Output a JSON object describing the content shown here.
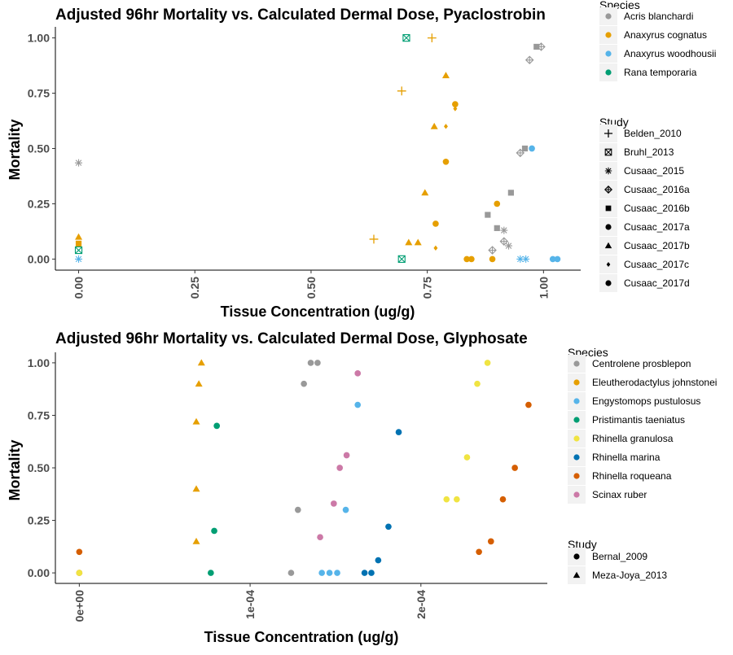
{
  "colors": {
    "gray": "#999999",
    "orange": "#E69F00",
    "skyblue": "#56B4E9",
    "green": "#009E73",
    "yellow": "#F0E442",
    "blue": "#0072B2",
    "vermillion": "#D55E00",
    "pink": "#CC79A7"
  },
  "chart_data": [
    {
      "type": "scatter",
      "title": "Adjusted 96hr Mortality vs. Calculated Dermal Dose, Pyaclostrobin",
      "xlabel": "Tissue Concentration (ug/g)",
      "ylabel": "Mortality",
      "xlim": [
        -0.05,
        1.08
      ],
      "ylim": [
        -0.05,
        1.05
      ],
      "xticks": [
        0,
        0.25,
        0.5,
        0.75,
        1.0
      ],
      "xtick_labels": [
        "0.00",
        "0.25",
        "0.50",
        "0.75",
        "1.00"
      ],
      "yticks": [
        0,
        0.25,
        0.5,
        0.75,
        1.0
      ],
      "ytick_labels": [
        "0.00",
        "0.25",
        "0.50",
        "0.75",
        "1.00"
      ],
      "x_tick_rotation": -90,
      "grid": false,
      "legend_position": "right",
      "legend_species_title": "Species",
      "legend_study_title": "Study",
      "species": [
        {
          "name": "Acris blanchardi",
          "color": "#999999"
        },
        {
          "name": "Anaxyrus cognatus",
          "color": "#E69F00"
        },
        {
          "name": "Anaxyrus woodhousii",
          "color": "#56B4E9"
        },
        {
          "name": "Rana temporaria",
          "color": "#009E73"
        }
      ],
      "studies": [
        {
          "name": "Belden_2010",
          "shape": "plus"
        },
        {
          "name": "Bruhl_2013",
          "shape": "boxx"
        },
        {
          "name": "Cusaac_2015",
          "shape": "asterisk"
        },
        {
          "name": "Cusaac_2016a",
          "shape": "diamondplus"
        },
        {
          "name": "Cusaac_2016b",
          "shape": "square"
        },
        {
          "name": "Cusaac_2017a",
          "shape": "circle"
        },
        {
          "name": "Cusaac_2017b",
          "shape": "triangle"
        },
        {
          "name": "Cusaac_2017c",
          "shape": "diamond"
        },
        {
          "name": "Cusaac_2017d",
          "shape": "circle"
        }
      ],
      "points": [
        {
          "x": 0.0,
          "y": 0.435,
          "species": "Acris blanchardi",
          "study": "Cusaac_2015"
        },
        {
          "x": 0.0,
          "y": 0.1,
          "species": "Anaxyrus cognatus",
          "study": "Cusaac_2017b"
        },
        {
          "x": 0.0,
          "y": 0.07,
          "species": "Anaxyrus cognatus",
          "study": "Cusaac_2016b"
        },
        {
          "x": 0.0,
          "y": 0.04,
          "species": "Rana temporaria",
          "study": "Bruhl_2013"
        },
        {
          "x": 0.0,
          "y": 0.0,
          "species": "Anaxyrus woodhousii",
          "study": "Cusaac_2015"
        },
        {
          "x": 0.635,
          "y": 0.09,
          "species": "Anaxyrus cognatus",
          "study": "Belden_2010"
        },
        {
          "x": 0.695,
          "y": 0.76,
          "species": "Anaxyrus cognatus",
          "study": "Belden_2010"
        },
        {
          "x": 0.76,
          "y": 1.0,
          "species": "Anaxyrus cognatus",
          "study": "Belden_2010"
        },
        {
          "x": 0.705,
          "y": 1.0,
          "species": "Rana temporaria",
          "study": "Bruhl_2013"
        },
        {
          "x": 0.695,
          "y": 0.0,
          "species": "Rana temporaria",
          "study": "Bruhl_2013"
        },
        {
          "x": 0.71,
          "y": 0.075,
          "species": "Anaxyrus cognatus",
          "study": "Cusaac_2017b"
        },
        {
          "x": 0.73,
          "y": 0.075,
          "species": "Anaxyrus cognatus",
          "study": "Cusaac_2017b"
        },
        {
          "x": 0.745,
          "y": 0.3,
          "species": "Anaxyrus cognatus",
          "study": "Cusaac_2017b"
        },
        {
          "x": 0.765,
          "y": 0.6,
          "species": "Anaxyrus cognatus",
          "study": "Cusaac_2017b"
        },
        {
          "x": 0.79,
          "y": 0.83,
          "species": "Anaxyrus cognatus",
          "study": "Cusaac_2017b"
        },
        {
          "x": 0.768,
          "y": 0.16,
          "species": "Anaxyrus cognatus",
          "study": "Cusaac_2017a"
        },
        {
          "x": 0.768,
          "y": 0.05,
          "species": "Anaxyrus cognatus",
          "study": "Cusaac_2017c"
        },
        {
          "x": 0.79,
          "y": 0.6,
          "species": "Anaxyrus cognatus",
          "study": "Cusaac_2017c"
        },
        {
          "x": 0.79,
          "y": 0.44,
          "species": "Anaxyrus cognatus",
          "study": "Cusaac_2017a"
        },
        {
          "x": 0.81,
          "y": 0.7,
          "species": "Anaxyrus cognatus",
          "study": "Cusaac_2017a"
        },
        {
          "x": 0.81,
          "y": 0.68,
          "species": "Anaxyrus cognatus",
          "study": "Cusaac_2017c"
        },
        {
          "x": 0.835,
          "y": 0.0,
          "species": "Anaxyrus cognatus",
          "study": "Cusaac_2017a"
        },
        {
          "x": 0.845,
          "y": 0.0,
          "species": "Anaxyrus cognatus",
          "study": "Cusaac_2017a"
        },
        {
          "x": 0.89,
          "y": 0.0,
          "species": "Anaxyrus cognatus",
          "study": "Cusaac_2017a"
        },
        {
          "x": 0.9,
          "y": 0.25,
          "species": "Anaxyrus cognatus",
          "study": "Cusaac_2017a"
        },
        {
          "x": 0.88,
          "y": 0.2,
          "species": "Acris blanchardi",
          "study": "Cusaac_2016b"
        },
        {
          "x": 0.9,
          "y": 0.14,
          "species": "Acris blanchardi",
          "study": "Cusaac_2016b"
        },
        {
          "x": 0.93,
          "y": 0.3,
          "species": "Acris blanchardi",
          "study": "Cusaac_2016b"
        },
        {
          "x": 0.96,
          "y": 0.5,
          "species": "Acris blanchardi",
          "study": "Cusaac_2016b"
        },
        {
          "x": 0.985,
          "y": 0.96,
          "species": "Acris blanchardi",
          "study": "Cusaac_2016b"
        },
        {
          "x": 0.89,
          "y": 0.04,
          "species": "Acris blanchardi",
          "study": "Cusaac_2016a"
        },
        {
          "x": 0.95,
          "y": 0.48,
          "species": "Acris blanchardi",
          "study": "Cusaac_2016a"
        },
        {
          "x": 0.97,
          "y": 0.9,
          "species": "Acris blanchardi",
          "study": "Cusaac_2016a"
        },
        {
          "x": 0.995,
          "y": 0.96,
          "species": "Acris blanchardi",
          "study": "Cusaac_2016a"
        },
        {
          "x": 0.915,
          "y": 0.08,
          "species": "Acris blanchardi",
          "study": "Cusaac_2016a"
        },
        {
          "x": 0.915,
          "y": 0.13,
          "species": "Acris blanchardi",
          "study": "Cusaac_2015"
        },
        {
          "x": 0.925,
          "y": 0.06,
          "species": "Acris blanchardi",
          "study": "Cusaac_2015"
        },
        {
          "x": 0.95,
          "y": 0.0,
          "species": "Anaxyrus woodhousii",
          "study": "Cusaac_2015"
        },
        {
          "x": 0.962,
          "y": 0.0,
          "species": "Anaxyrus woodhousii",
          "study": "Cusaac_2015"
        },
        {
          "x": 0.975,
          "y": 0.5,
          "species": "Anaxyrus woodhousii",
          "study": "Cusaac_2017a"
        },
        {
          "x": 1.02,
          "y": 0.0,
          "species": "Anaxyrus woodhousii",
          "study": "Cusaac_2017a"
        },
        {
          "x": 1.03,
          "y": 0.0,
          "species": "Anaxyrus woodhousii",
          "study": "Cusaac_2017a"
        }
      ]
    },
    {
      "type": "scatter",
      "title": "Adjusted 96hr Mortality vs. Calculated Dermal Dose, Glyphosate",
      "xlabel": "Tissue Concentration (ug/g)",
      "ylabel": "Mortality",
      "xlim": [
        -1.4e-05,
        0.000274
      ],
      "ylim": [
        -0.05,
        1.05
      ],
      "xticks": [
        0,
        0.0001,
        0.0002
      ],
      "xtick_labels": [
        "0e+00",
        "1e-04",
        "2e-04"
      ],
      "yticks": [
        0,
        0.25,
        0.5,
        0.75,
        1.0
      ],
      "ytick_labels": [
        "0.00",
        "0.25",
        "0.50",
        "0.75",
        "1.00"
      ],
      "x_tick_rotation": -90,
      "grid": false,
      "legend_position": "right",
      "legend_species_title": "Species",
      "legend_study_title": "Study",
      "species": [
        {
          "name": "Centrolene prosblepon",
          "color": "#999999"
        },
        {
          "name": "Eleutherodactylus johnstonei",
          "color": "#E69F00"
        },
        {
          "name": "Engystomops pustulosus",
          "color": "#56B4E9"
        },
        {
          "name": "Pristimantis taeniatus",
          "color": "#009E73"
        },
        {
          "name": "Rhinella granulosa",
          "color": "#F0E442"
        },
        {
          "name": "Rhinella marina",
          "color": "#0072B2"
        },
        {
          "name": "Rhinella roqueana",
          "color": "#D55E00"
        },
        {
          "name": "Scinax ruber",
          "color": "#CC79A7"
        }
      ],
      "studies": [
        {
          "name": "Bernal_2009",
          "shape": "circle"
        },
        {
          "name": "Meza-Joya_2013",
          "shape": "triangle"
        }
      ],
      "points": [
        {
          "x": 0.0,
          "y": 0.1,
          "species": "Rhinella roqueana",
          "study": "Bernal_2009"
        },
        {
          "x": 0.0,
          "y": 0.0,
          "species": "Rhinella roqueana",
          "study": "Bernal_2009"
        },
        {
          "x": 0.0,
          "y": 0.0,
          "species": "Rhinella granulosa",
          "study": "Bernal_2009"
        },
        {
          "x": 6.85e-05,
          "y": 0.15,
          "species": "Eleutherodactylus johnstonei",
          "study": "Meza-Joya_2013"
        },
        {
          "x": 6.85e-05,
          "y": 0.4,
          "species": "Eleutherodactylus johnstonei",
          "study": "Meza-Joya_2013"
        },
        {
          "x": 6.85e-05,
          "y": 0.72,
          "species": "Eleutherodactylus johnstonei",
          "study": "Meza-Joya_2013"
        },
        {
          "x": 7e-05,
          "y": 0.9,
          "species": "Eleutherodactylus johnstonei",
          "study": "Meza-Joya_2013"
        },
        {
          "x": 7.15e-05,
          "y": 1.0,
          "species": "Eleutherodactylus johnstonei",
          "study": "Meza-Joya_2013"
        },
        {
          "x": 7.7e-05,
          "y": 0.0,
          "species": "Pristimantis taeniatus",
          "study": "Bernal_2009"
        },
        {
          "x": 7.9e-05,
          "y": 0.2,
          "species": "Pristimantis taeniatus",
          "study": "Bernal_2009"
        },
        {
          "x": 8.05e-05,
          "y": 0.7,
          "species": "Pristimantis taeniatus",
          "study": "Bernal_2009"
        },
        {
          "x": 0.000124,
          "y": 0.0,
          "species": "Centrolene prosblepon",
          "study": "Bernal_2009"
        },
        {
          "x": 0.000128,
          "y": 0.3,
          "species": "Centrolene prosblepon",
          "study": "Bernal_2009"
        },
        {
          "x": 0.0001315,
          "y": 0.9,
          "species": "Centrolene prosblepon",
          "study": "Bernal_2009"
        },
        {
          "x": 0.0001355,
          "y": 1.0,
          "species": "Centrolene prosblepon",
          "study": "Bernal_2009"
        },
        {
          "x": 0.0001395,
          "y": 1.0,
          "species": "Centrolene prosblepon",
          "study": "Bernal_2009"
        },
        {
          "x": 0.000141,
          "y": 0.17,
          "species": "Scinax ruber",
          "study": "Bernal_2009"
        },
        {
          "x": 0.000149,
          "y": 0.33,
          "species": "Scinax ruber",
          "study": "Bernal_2009"
        },
        {
          "x": 0.0001525,
          "y": 0.5,
          "species": "Scinax ruber",
          "study": "Bernal_2009"
        },
        {
          "x": 0.0001565,
          "y": 0.56,
          "species": "Scinax ruber",
          "study": "Bernal_2009"
        },
        {
          "x": 0.000163,
          "y": 0.95,
          "species": "Scinax ruber",
          "study": "Bernal_2009"
        },
        {
          "x": 0.000142,
          "y": 0.0,
          "species": "Engystomops pustulosus",
          "study": "Bernal_2009"
        },
        {
          "x": 0.0001465,
          "y": 0.0,
          "species": "Engystomops pustulosus",
          "study": "Bernal_2009"
        },
        {
          "x": 0.000151,
          "y": 0.0,
          "species": "Engystomops pustulosus",
          "study": "Bernal_2009"
        },
        {
          "x": 0.000156,
          "y": 0.3,
          "species": "Engystomops pustulosus",
          "study": "Bernal_2009"
        },
        {
          "x": 0.000163,
          "y": 0.8,
          "species": "Engystomops pustulosus",
          "study": "Bernal_2009"
        },
        {
          "x": 0.000167,
          "y": 0.0,
          "species": "Rhinella marina",
          "study": "Bernal_2009"
        },
        {
          "x": 0.000171,
          "y": 0.0,
          "species": "Rhinella marina",
          "study": "Bernal_2009"
        },
        {
          "x": 0.000175,
          "y": 0.06,
          "species": "Rhinella marina",
          "study": "Bernal_2009"
        },
        {
          "x": 0.000181,
          "y": 0.22,
          "species": "Rhinella marina",
          "study": "Bernal_2009"
        },
        {
          "x": 0.000187,
          "y": 0.67,
          "species": "Rhinella marina",
          "study": "Bernal_2009"
        },
        {
          "x": 0.000215,
          "y": 0.35,
          "species": "Rhinella granulosa",
          "study": "Bernal_2009"
        },
        {
          "x": 0.000221,
          "y": 0.35,
          "species": "Rhinella granulosa",
          "study": "Bernal_2009"
        },
        {
          "x": 0.000227,
          "y": 0.55,
          "species": "Rhinella granulosa",
          "study": "Bernal_2009"
        },
        {
          "x": 0.000233,
          "y": 0.9,
          "species": "Rhinella granulosa",
          "study": "Bernal_2009"
        },
        {
          "x": 0.000239,
          "y": 1.0,
          "species": "Rhinella granulosa",
          "study": "Bernal_2009"
        },
        {
          "x": 0.000234,
          "y": 0.1,
          "species": "Rhinella roqueana",
          "study": "Bernal_2009"
        },
        {
          "x": 0.000241,
          "y": 0.15,
          "species": "Rhinella roqueana",
          "study": "Bernal_2009"
        },
        {
          "x": 0.000248,
          "y": 0.35,
          "species": "Rhinella roqueana",
          "study": "Bernal_2009"
        },
        {
          "x": 0.000255,
          "y": 0.5,
          "species": "Rhinella roqueana",
          "study": "Bernal_2009"
        },
        {
          "x": 0.000263,
          "y": 0.8,
          "species": "Rhinella roqueana",
          "study": "Bernal_2009"
        }
      ]
    }
  ]
}
